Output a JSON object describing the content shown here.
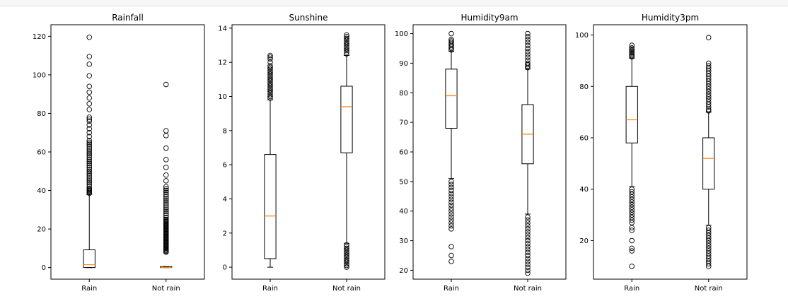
{
  "chart_data": [
    {
      "type": "box",
      "title": "Rainfall",
      "categories": [
        "Rain",
        "Not rain"
      ],
      "ylim": [
        -6,
        126
      ],
      "yticks": [
        0,
        20,
        40,
        60,
        80,
        100,
        120
      ],
      "boxes": [
        {
          "whislo": 0,
          "q1": 0,
          "med": 1.5,
          "q3": 9.2,
          "whishi": 38,
          "fliers": [
            38.5,
            39,
            39.5,
            40,
            40.5,
            41,
            42,
            43,
            44,
            45,
            46,
            47,
            48,
            49,
            50,
            51,
            52,
            53,
            54,
            55,
            56,
            57,
            58,
            59,
            60,
            61,
            62,
            63,
            64,
            65,
            66,
            68,
            70,
            72,
            74,
            76,
            77,
            78,
            82,
            85,
            88,
            91,
            94,
            99.5,
            105.5,
            109.5,
            119.5
          ]
        },
        {
          "whislo": 0,
          "q1": 0,
          "med": 0,
          "q3": 0.5,
          "whishi": 0.5,
          "fliers": [
            8,
            8.5,
            9,
            9.5,
            10,
            10.5,
            11,
            11.5,
            12,
            12.5,
            13,
            13.5,
            14,
            14.5,
            15,
            15.5,
            16,
            16.5,
            17,
            17.5,
            18,
            18.5,
            19,
            19.5,
            20,
            20.5,
            21,
            21.5,
            22,
            22.5,
            23,
            23.5,
            24,
            24.5,
            25,
            26,
            27,
            28,
            29,
            30,
            31,
            32,
            33,
            34,
            35,
            36,
            37,
            38,
            39,
            40,
            41,
            42,
            45,
            48,
            52,
            56,
            62,
            68.5,
            71,
            95
          ]
        }
      ]
    },
    {
      "type": "box",
      "title": "Sunshine",
      "categories": [
        "Rain",
        "Not rain"
      ],
      "ylim": [
        -0.7,
        14.2
      ],
      "yticks": [
        0,
        2,
        4,
        6,
        8,
        10,
        12,
        14
      ],
      "boxes": [
        {
          "whislo": 0,
          "q1": 0.5,
          "med": 3,
          "q3": 6.6,
          "whishi": 9.8,
          "fliers": [
            9.9,
            10,
            10.1,
            10.2,
            10.3,
            10.4,
            10.5,
            10.6,
            10.7,
            10.8,
            10.9,
            11,
            11.1,
            11.2,
            11.3,
            11.4,
            11.5,
            11.6,
            11.7,
            11.8,
            12,
            12.2,
            12.3,
            12.4
          ]
        },
        {
          "whislo": 1.4,
          "q1": 6.7,
          "med": 9.4,
          "q3": 10.6,
          "whishi": 12.4,
          "fliers": [
            0,
            0.1,
            0.2,
            0.3,
            0.4,
            0.5,
            0.6,
            0.7,
            0.8,
            0.9,
            1.0,
            1.1,
            1.2,
            1.3,
            12.5,
            12.6,
            12.7,
            12.8,
            12.9,
            13,
            13.1,
            13.2,
            13.3,
            13.4,
            13.5,
            13.6
          ]
        }
      ]
    },
    {
      "type": "box",
      "title": "Humidity9am",
      "categories": [
        "Rain",
        "Not rain"
      ],
      "ylim": [
        17,
        103
      ],
      "yticks": [
        20,
        30,
        40,
        50,
        60,
        70,
        80,
        90,
        100
      ],
      "boxes": [
        {
          "whislo": 51,
          "q1": 68,
          "med": 79,
          "q3": 88,
          "whishi": 94,
          "fliers": [
            23,
            25,
            28,
            34,
            35,
            36,
            37,
            38,
            39,
            40,
            41,
            42,
            43,
            44,
            45,
            46,
            47,
            48,
            49,
            50,
            94.5,
            95,
            95.5,
            96,
            96.5,
            97,
            97.5,
            98,
            100
          ]
        },
        {
          "whislo": 39,
          "q1": 56,
          "med": 66,
          "q3": 76,
          "whishi": 88,
          "fliers": [
            19,
            20,
            21,
            22,
            23,
            24,
            25,
            26,
            27,
            28,
            29,
            30,
            31,
            32,
            33,
            34,
            35,
            36,
            37,
            38,
            88.5,
            89,
            89.5,
            90,
            91,
            92,
            93,
            94,
            95,
            96,
            97,
            98,
            99,
            100
          ]
        }
      ]
    },
    {
      "type": "box",
      "title": "Humidity3pm",
      "categories": [
        "Rain",
        "Not rain"
      ],
      "ylim": [
        5,
        104
      ],
      "yticks": [
        20,
        40,
        60,
        80,
        100
      ],
      "boxes": [
        {
          "whislo": 41,
          "q1": 58,
          "med": 67,
          "q3": 80,
          "whishi": 91,
          "fliers": [
            10,
            16,
            17,
            20,
            24,
            25,
            27,
            28,
            29,
            30,
            31,
            32,
            33,
            34,
            35,
            36,
            37,
            38,
            39,
            40,
            91.5,
            92,
            92.5,
            93,
            93.5,
            94,
            94.5,
            95,
            96
          ]
        },
        {
          "whislo": 26,
          "q1": 40,
          "med": 52,
          "q3": 60,
          "whishi": 70,
          "fliers": [
            10,
            11,
            12,
            13,
            14,
            15,
            16,
            17,
            18,
            19,
            20,
            21,
            22,
            23,
            24,
            25,
            70.5,
            71,
            72,
            73,
            74,
            75,
            76,
            77,
            78,
            79,
            80,
            81,
            82,
            83,
            84,
            85,
            86,
            87,
            88,
            89,
            99
          ]
        }
      ]
    }
  ],
  "colors": {
    "box": "#000000",
    "median": "#ff7f0e",
    "flier": "#000000"
  }
}
